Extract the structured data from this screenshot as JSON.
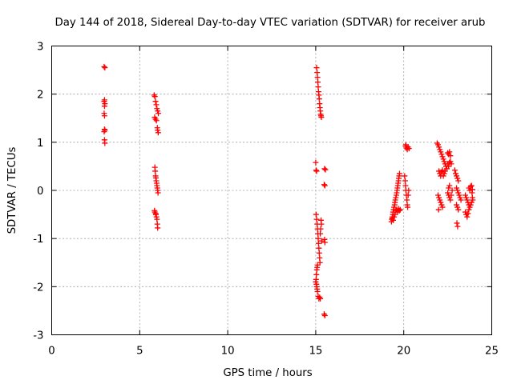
{
  "chart_data": {
    "type": "scatter",
    "title": "Day 144 of 2018, Sidereal Day-to-day VTEC variation (SDTVAR) for receiver arub",
    "xlabel": "GPS time / hours",
    "ylabel": "SDTVAR / TECUs",
    "xlim": [
      0,
      25
    ],
    "ylim": [
      -3,
      3
    ],
    "xticks": [
      0,
      5,
      10,
      15,
      20,
      25
    ],
    "yticks": [
      -3,
      -2,
      -1,
      0,
      1,
      2,
      3
    ],
    "xtick_labels": [
      "0",
      "5",
      "10",
      "15",
      "20",
      "25"
    ],
    "ytick_labels": [
      "-3",
      "-2",
      "-1",
      "0",
      "1",
      "2",
      "3"
    ],
    "grid": true,
    "marker": "+",
    "series_color": "#ff0000",
    "series": [
      {
        "name": "SDTVAR",
        "points": [
          [
            2.98,
            2.57
          ],
          [
            3.02,
            2.55
          ],
          [
            3.0,
            1.88
          ],
          [
            2.98,
            1.85
          ],
          [
            3.02,
            1.8
          ],
          [
            3.0,
            1.75
          ],
          [
            2.98,
            1.6
          ],
          [
            3.0,
            1.55
          ],
          [
            3.0,
            1.27
          ],
          [
            3.02,
            1.25
          ],
          [
            2.98,
            1.22
          ],
          [
            3.0,
            1.05
          ],
          [
            3.02,
            0.98
          ],
          [
            5.82,
            1.98
          ],
          [
            5.86,
            1.95
          ],
          [
            5.9,
            1.85
          ],
          [
            5.94,
            1.78
          ],
          [
            5.98,
            1.7
          ],
          [
            6.02,
            1.65
          ],
          [
            6.06,
            1.6
          ],
          [
            5.85,
            1.52
          ],
          [
            5.9,
            1.48
          ],
          [
            5.95,
            1.45
          ],
          [
            6.0,
            1.3
          ],
          [
            6.02,
            1.25
          ],
          [
            6.05,
            1.2
          ],
          [
            5.86,
            0.48
          ],
          [
            5.88,
            0.4
          ],
          [
            5.9,
            0.3
          ],
          [
            5.92,
            0.26
          ],
          [
            5.94,
            0.2
          ],
          [
            5.96,
            0.15
          ],
          [
            5.98,
            0.1
          ],
          [
            6.0,
            0.05
          ],
          [
            6.02,
            0.0
          ],
          [
            6.04,
            -0.05
          ],
          [
            5.84,
            -0.42
          ],
          [
            5.86,
            -0.45
          ],
          [
            5.9,
            -0.48
          ],
          [
            5.92,
            -0.5
          ],
          [
            5.95,
            -0.55
          ],
          [
            5.98,
            -0.6
          ],
          [
            6.0,
            -0.7
          ],
          [
            6.02,
            -0.78
          ],
          [
            15.05,
            2.55
          ],
          [
            15.08,
            2.45
          ],
          [
            15.1,
            2.35
          ],
          [
            15.12,
            2.25
          ],
          [
            15.14,
            2.15
          ],
          [
            15.16,
            2.05
          ],
          [
            15.18,
            1.98
          ],
          [
            15.2,
            1.9
          ],
          [
            15.22,
            1.8
          ],
          [
            15.24,
            1.72
          ],
          [
            15.26,
            1.65
          ],
          [
            15.28,
            1.58
          ],
          [
            15.3,
            1.55
          ],
          [
            15.32,
            1.52
          ],
          [
            15.0,
            0.58
          ],
          [
            15.02,
            0.42
          ],
          [
            15.05,
            0.4
          ],
          [
            15.5,
            0.45
          ],
          [
            15.55,
            0.43
          ],
          [
            15.48,
            0.12
          ],
          [
            15.52,
            0.1
          ],
          [
            15.02,
            -0.5
          ],
          [
            15.05,
            -0.6
          ],
          [
            15.08,
            -0.7
          ],
          [
            15.1,
            -0.8
          ],
          [
            15.12,
            -0.9
          ],
          [
            15.14,
            -1.0
          ],
          [
            15.16,
            -1.1
          ],
          [
            15.18,
            -1.2
          ],
          [
            15.2,
            -1.3
          ],
          [
            15.22,
            -1.4
          ],
          [
            15.24,
            -1.5
          ],
          [
            15.1,
            -1.55
          ],
          [
            15.08,
            -1.6
          ],
          [
            15.06,
            -1.65
          ],
          [
            15.04,
            -1.75
          ],
          [
            15.02,
            -1.85
          ],
          [
            15.0,
            -1.9
          ],
          [
            15.04,
            -1.95
          ],
          [
            15.06,
            -2.0
          ],
          [
            15.08,
            -2.05
          ],
          [
            15.1,
            -2.1
          ],
          [
            15.14,
            -2.2
          ],
          [
            15.18,
            -2.25
          ],
          [
            15.22,
            -2.22
          ],
          [
            15.26,
            -2.25
          ],
          [
            15.3,
            -0.62
          ],
          [
            15.32,
            -0.7
          ],
          [
            15.28,
            -0.8
          ],
          [
            15.26,
            -0.9
          ],
          [
            15.34,
            -1.05
          ],
          [
            15.5,
            -1.02
          ],
          [
            15.52,
            -1.08
          ],
          [
            15.48,
            -2.57
          ],
          [
            15.52,
            -2.6
          ],
          [
            19.3,
            -0.65
          ],
          [
            19.32,
            -0.6
          ],
          [
            19.35,
            -0.55
          ],
          [
            19.38,
            -0.5
          ],
          [
            19.4,
            -0.45
          ],
          [
            19.42,
            -0.4
          ],
          [
            19.45,
            -0.35
          ],
          [
            19.48,
            -0.3
          ],
          [
            19.5,
            -0.25
          ],
          [
            19.52,
            -0.2
          ],
          [
            19.55,
            -0.15
          ],
          [
            19.58,
            -0.1
          ],
          [
            19.6,
            -0.05
          ],
          [
            19.62,
            0.0
          ],
          [
            19.64,
            0.05
          ],
          [
            19.66,
            0.1
          ],
          [
            19.68,
            0.15
          ],
          [
            19.7,
            0.2
          ],
          [
            19.72,
            0.25
          ],
          [
            19.74,
            0.3
          ],
          [
            19.76,
            0.35
          ],
          [
            19.35,
            -0.58
          ],
          [
            19.4,
            -0.62
          ],
          [
            19.45,
            -0.55
          ],
          [
            19.5,
            -0.5
          ],
          [
            19.55,
            -0.42
          ],
          [
            19.6,
            -0.4
          ],
          [
            19.65,
            -0.45
          ],
          [
            19.7,
            -0.38
          ],
          [
            19.75,
            -0.42
          ],
          [
            19.8,
            -0.4
          ],
          [
            20.05,
            0.3
          ],
          [
            20.08,
            0.2
          ],
          [
            20.1,
            0.1
          ],
          [
            20.12,
            0.0
          ],
          [
            20.15,
            -0.1
          ],
          [
            20.18,
            -0.2
          ],
          [
            20.2,
            -0.3
          ],
          [
            20.22,
            -0.35
          ],
          [
            20.25,
            -0.1
          ],
          [
            20.28,
            0.0
          ],
          [
            20.1,
            0.92
          ],
          [
            20.15,
            0.88
          ],
          [
            20.2,
            0.85
          ],
          [
            20.25,
            0.9
          ],
          [
            20.3,
            0.87
          ],
          [
            20.12,
            0.95
          ],
          [
            21.9,
            0.98
          ],
          [
            21.95,
            0.95
          ],
          [
            22.0,
            0.9
          ],
          [
            22.05,
            0.85
          ],
          [
            22.1,
            0.8
          ],
          [
            22.15,
            0.75
          ],
          [
            22.2,
            0.7
          ],
          [
            22.25,
            0.65
          ],
          [
            22.3,
            0.6
          ],
          [
            22.35,
            0.55
          ],
          [
            22.4,
            0.5
          ],
          [
            22.45,
            0.45
          ],
          [
            22.0,
            0.4
          ],
          [
            22.05,
            0.35
          ],
          [
            22.1,
            0.3
          ],
          [
            22.15,
            0.38
          ],
          [
            22.2,
            0.42
          ],
          [
            22.25,
            0.3
          ],
          [
            22.3,
            0.35
          ],
          [
            22.35,
            0.4
          ],
          [
            21.95,
            -0.1
          ],
          [
            22.0,
            -0.15
          ],
          [
            22.05,
            -0.2
          ],
          [
            22.1,
            -0.25
          ],
          [
            22.15,
            -0.3
          ],
          [
            22.2,
            -0.35
          ],
          [
            21.98,
            -0.4
          ],
          [
            22.5,
            0.78
          ],
          [
            22.55,
            0.75
          ],
          [
            22.6,
            0.8
          ],
          [
            22.65,
            0.72
          ],
          [
            22.5,
            0.55
          ],
          [
            22.55,
            0.5
          ],
          [
            22.6,
            0.58
          ],
          [
            22.65,
            0.6
          ],
          [
            22.7,
            0.55
          ],
          [
            22.5,
            -0.05
          ],
          [
            22.55,
            -0.1
          ],
          [
            22.6,
            -0.15
          ],
          [
            22.65,
            -0.2
          ],
          [
            22.7,
            -0.1
          ],
          [
            22.75,
            0.0
          ],
          [
            22.6,
            0.1
          ],
          [
            22.55,
            0.05
          ],
          [
            22.9,
            0.42
          ],
          [
            22.95,
            0.35
          ],
          [
            23.0,
            0.3
          ],
          [
            23.05,
            0.25
          ],
          [
            23.1,
            0.2
          ],
          [
            23.0,
            0.05
          ],
          [
            23.05,
            0.0
          ],
          [
            23.1,
            -0.05
          ],
          [
            23.15,
            -0.1
          ],
          [
            23.2,
            -0.15
          ],
          [
            23.25,
            -0.2
          ],
          [
            23.0,
            -0.3
          ],
          [
            23.05,
            -0.35
          ],
          [
            23.1,
            -0.4
          ],
          [
            23.02,
            -0.68
          ],
          [
            23.06,
            -0.75
          ],
          [
            23.5,
            -0.1
          ],
          [
            23.55,
            -0.15
          ],
          [
            23.6,
            -0.2
          ],
          [
            23.65,
            -0.25
          ],
          [
            23.7,
            -0.3
          ],
          [
            23.75,
            -0.35
          ],
          [
            23.8,
            -0.3
          ],
          [
            23.85,
            -0.25
          ],
          [
            23.5,
            -0.45
          ],
          [
            23.55,
            -0.5
          ],
          [
            23.6,
            -0.55
          ],
          [
            23.65,
            -0.48
          ],
          [
            23.7,
            -0.4
          ],
          [
            23.7,
            0.05
          ],
          [
            23.75,
            0.0
          ],
          [
            23.8,
            0.08
          ],
          [
            23.85,
            0.1
          ],
          [
            23.9,
            0.02
          ],
          [
            23.88,
            -0.05
          ],
          [
            23.9,
            -0.15
          ],
          [
            23.92,
            -0.2
          ]
        ]
      }
    ]
  }
}
